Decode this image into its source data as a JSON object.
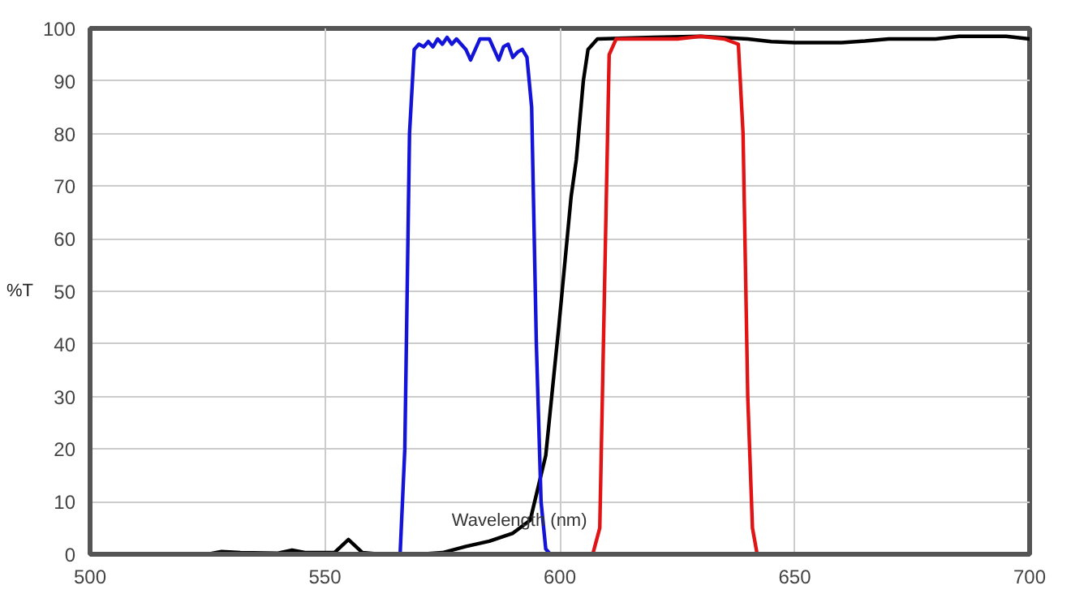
{
  "chart_data": {
    "type": "line",
    "xlabel": "Wavelength (nm)",
    "ylabel": "%T",
    "xlim": [
      500,
      700
    ],
    "ylim": [
      0,
      100
    ],
    "xticks": [
      500,
      550,
      600,
      650,
      700
    ],
    "yticks": [
      0,
      10,
      20,
      30,
      40,
      50,
      60,
      70,
      80,
      90,
      100
    ],
    "grid": true,
    "marker": "none",
    "line_style": "solid",
    "series": [
      {
        "color": "#000000",
        "x": [
          500,
          525,
          528,
          532,
          540,
          543,
          546,
          552,
          555,
          558,
          562,
          570,
          575,
          580,
          585,
          590,
          593.7,
          597,
          599.8,
          602.4,
          603.5,
          604,
          605,
          606,
          608,
          620,
          630,
          640,
          645,
          650,
          660,
          665,
          670,
          680,
          685,
          690,
          695,
          700
        ],
        "values": [
          0,
          0,
          0.5,
          0.3,
          0.2,
          0.8,
          0.3,
          0.3,
          2.8,
          0.3,
          0,
          0,
          0.3,
          1.5,
          2.5,
          4,
          6.5,
          18.8,
          43.5,
          68,
          75,
          80,
          90,
          96,
          98,
          98.3,
          98.5,
          98,
          97.5,
          97.3,
          97.3,
          97.6,
          98,
          98,
          98.5,
          98.5,
          98.5,
          98
        ]
      },
      {
        "color": "#1414d8",
        "x": [
          500,
          566,
          567,
          568,
          569,
          570,
          571,
          572,
          573,
          574,
          575,
          576,
          577,
          578,
          579,
          580,
          581,
          582,
          583,
          585,
          586,
          587,
          588,
          589,
          590,
          591,
          592,
          593,
          594,
          595,
          596,
          597,
          598,
          700
        ],
        "values": [
          0,
          0,
          20,
          80,
          96,
          97,
          96.5,
          97.5,
          96.5,
          98,
          97,
          98.3,
          97,
          98,
          97,
          96,
          94,
          96,
          98,
          98,
          96,
          94,
          96.5,
          97,
          94.5,
          95.5,
          96,
          94.5,
          85,
          40,
          10,
          1,
          0,
          0
        ]
      },
      {
        "color": "#e01414",
        "x": [
          500,
          607,
          608.5,
          609.5,
          610.5,
          612,
          620,
          625,
          630,
          635,
          638,
          639,
          640,
          641,
          642
        ],
        "values": [
          0,
          0,
          5,
          50,
          95,
          98,
          98,
          98,
          98.5,
          98,
          97,
          80,
          30,
          5,
          0
        ]
      }
    ]
  }
}
